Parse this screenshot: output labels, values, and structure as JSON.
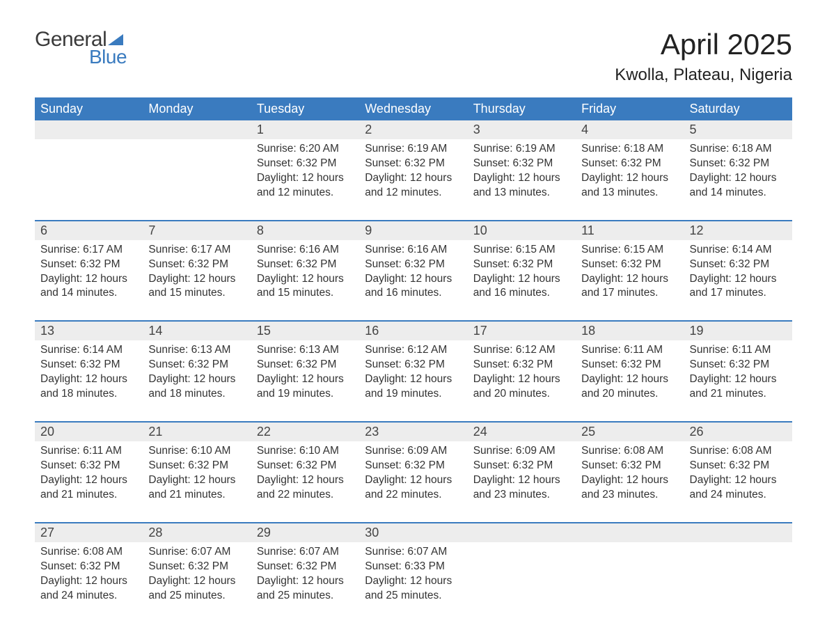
{
  "logo": {
    "word1": "General",
    "word2": "Blue"
  },
  "title": "April 2025",
  "location": "Kwolla, Plateau, Nigeria",
  "colors": {
    "header_bg": "#3a7bbf",
    "header_text": "#ffffff",
    "daynum_bg": "#ededed",
    "border": "#3a7bbf",
    "text": "#333333"
  },
  "day_headers": [
    "Sunday",
    "Monday",
    "Tuesday",
    "Wednesday",
    "Thursday",
    "Friday",
    "Saturday"
  ],
  "weeks": [
    [
      {
        "n": "",
        "sunrise": "",
        "sunset": "",
        "daylight1": "",
        "daylight2": ""
      },
      {
        "n": "",
        "sunrise": "",
        "sunset": "",
        "daylight1": "",
        "daylight2": ""
      },
      {
        "n": "1",
        "sunrise": "Sunrise: 6:20 AM",
        "sunset": "Sunset: 6:32 PM",
        "daylight1": "Daylight: 12 hours",
        "daylight2": "and 12 minutes."
      },
      {
        "n": "2",
        "sunrise": "Sunrise: 6:19 AM",
        "sunset": "Sunset: 6:32 PM",
        "daylight1": "Daylight: 12 hours",
        "daylight2": "and 12 minutes."
      },
      {
        "n": "3",
        "sunrise": "Sunrise: 6:19 AM",
        "sunset": "Sunset: 6:32 PM",
        "daylight1": "Daylight: 12 hours",
        "daylight2": "and 13 minutes."
      },
      {
        "n": "4",
        "sunrise": "Sunrise: 6:18 AM",
        "sunset": "Sunset: 6:32 PM",
        "daylight1": "Daylight: 12 hours",
        "daylight2": "and 13 minutes."
      },
      {
        "n": "5",
        "sunrise": "Sunrise: 6:18 AM",
        "sunset": "Sunset: 6:32 PM",
        "daylight1": "Daylight: 12 hours",
        "daylight2": "and 14 minutes."
      }
    ],
    [
      {
        "n": "6",
        "sunrise": "Sunrise: 6:17 AM",
        "sunset": "Sunset: 6:32 PM",
        "daylight1": "Daylight: 12 hours",
        "daylight2": "and 14 minutes."
      },
      {
        "n": "7",
        "sunrise": "Sunrise: 6:17 AM",
        "sunset": "Sunset: 6:32 PM",
        "daylight1": "Daylight: 12 hours",
        "daylight2": "and 15 minutes."
      },
      {
        "n": "8",
        "sunrise": "Sunrise: 6:16 AM",
        "sunset": "Sunset: 6:32 PM",
        "daylight1": "Daylight: 12 hours",
        "daylight2": "and 15 minutes."
      },
      {
        "n": "9",
        "sunrise": "Sunrise: 6:16 AM",
        "sunset": "Sunset: 6:32 PM",
        "daylight1": "Daylight: 12 hours",
        "daylight2": "and 16 minutes."
      },
      {
        "n": "10",
        "sunrise": "Sunrise: 6:15 AM",
        "sunset": "Sunset: 6:32 PM",
        "daylight1": "Daylight: 12 hours",
        "daylight2": "and 16 minutes."
      },
      {
        "n": "11",
        "sunrise": "Sunrise: 6:15 AM",
        "sunset": "Sunset: 6:32 PM",
        "daylight1": "Daylight: 12 hours",
        "daylight2": "and 17 minutes."
      },
      {
        "n": "12",
        "sunrise": "Sunrise: 6:14 AM",
        "sunset": "Sunset: 6:32 PM",
        "daylight1": "Daylight: 12 hours",
        "daylight2": "and 17 minutes."
      }
    ],
    [
      {
        "n": "13",
        "sunrise": "Sunrise: 6:14 AM",
        "sunset": "Sunset: 6:32 PM",
        "daylight1": "Daylight: 12 hours",
        "daylight2": "and 18 minutes."
      },
      {
        "n": "14",
        "sunrise": "Sunrise: 6:13 AM",
        "sunset": "Sunset: 6:32 PM",
        "daylight1": "Daylight: 12 hours",
        "daylight2": "and 18 minutes."
      },
      {
        "n": "15",
        "sunrise": "Sunrise: 6:13 AM",
        "sunset": "Sunset: 6:32 PM",
        "daylight1": "Daylight: 12 hours",
        "daylight2": "and 19 minutes."
      },
      {
        "n": "16",
        "sunrise": "Sunrise: 6:12 AM",
        "sunset": "Sunset: 6:32 PM",
        "daylight1": "Daylight: 12 hours",
        "daylight2": "and 19 minutes."
      },
      {
        "n": "17",
        "sunrise": "Sunrise: 6:12 AM",
        "sunset": "Sunset: 6:32 PM",
        "daylight1": "Daylight: 12 hours",
        "daylight2": "and 20 minutes."
      },
      {
        "n": "18",
        "sunrise": "Sunrise: 6:11 AM",
        "sunset": "Sunset: 6:32 PM",
        "daylight1": "Daylight: 12 hours",
        "daylight2": "and 20 minutes."
      },
      {
        "n": "19",
        "sunrise": "Sunrise: 6:11 AM",
        "sunset": "Sunset: 6:32 PM",
        "daylight1": "Daylight: 12 hours",
        "daylight2": "and 21 minutes."
      }
    ],
    [
      {
        "n": "20",
        "sunrise": "Sunrise: 6:11 AM",
        "sunset": "Sunset: 6:32 PM",
        "daylight1": "Daylight: 12 hours",
        "daylight2": "and 21 minutes."
      },
      {
        "n": "21",
        "sunrise": "Sunrise: 6:10 AM",
        "sunset": "Sunset: 6:32 PM",
        "daylight1": "Daylight: 12 hours",
        "daylight2": "and 21 minutes."
      },
      {
        "n": "22",
        "sunrise": "Sunrise: 6:10 AM",
        "sunset": "Sunset: 6:32 PM",
        "daylight1": "Daylight: 12 hours",
        "daylight2": "and 22 minutes."
      },
      {
        "n": "23",
        "sunrise": "Sunrise: 6:09 AM",
        "sunset": "Sunset: 6:32 PM",
        "daylight1": "Daylight: 12 hours",
        "daylight2": "and 22 minutes."
      },
      {
        "n": "24",
        "sunrise": "Sunrise: 6:09 AM",
        "sunset": "Sunset: 6:32 PM",
        "daylight1": "Daylight: 12 hours",
        "daylight2": "and 23 minutes."
      },
      {
        "n": "25",
        "sunrise": "Sunrise: 6:08 AM",
        "sunset": "Sunset: 6:32 PM",
        "daylight1": "Daylight: 12 hours",
        "daylight2": "and 23 minutes."
      },
      {
        "n": "26",
        "sunrise": "Sunrise: 6:08 AM",
        "sunset": "Sunset: 6:32 PM",
        "daylight1": "Daylight: 12 hours",
        "daylight2": "and 24 minutes."
      }
    ],
    [
      {
        "n": "27",
        "sunrise": "Sunrise: 6:08 AM",
        "sunset": "Sunset: 6:32 PM",
        "daylight1": "Daylight: 12 hours",
        "daylight2": "and 24 minutes."
      },
      {
        "n": "28",
        "sunrise": "Sunrise: 6:07 AM",
        "sunset": "Sunset: 6:32 PM",
        "daylight1": "Daylight: 12 hours",
        "daylight2": "and 25 minutes."
      },
      {
        "n": "29",
        "sunrise": "Sunrise: 6:07 AM",
        "sunset": "Sunset: 6:32 PM",
        "daylight1": "Daylight: 12 hours",
        "daylight2": "and 25 minutes."
      },
      {
        "n": "30",
        "sunrise": "Sunrise: 6:07 AM",
        "sunset": "Sunset: 6:33 PM",
        "daylight1": "Daylight: 12 hours",
        "daylight2": "and 25 minutes."
      },
      {
        "n": "",
        "sunrise": "",
        "sunset": "",
        "daylight1": "",
        "daylight2": ""
      },
      {
        "n": "",
        "sunrise": "",
        "sunset": "",
        "daylight1": "",
        "daylight2": ""
      },
      {
        "n": "",
        "sunrise": "",
        "sunset": "",
        "daylight1": "",
        "daylight2": ""
      }
    ]
  ]
}
